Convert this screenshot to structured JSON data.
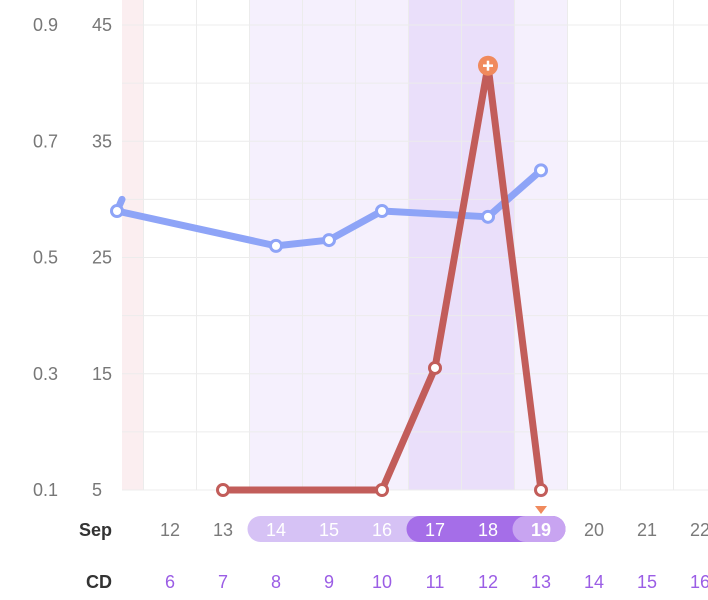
{
  "chart_data": {
    "type": "line",
    "left_axis_ticks": [
      "0.1",
      "0.3",
      "0.5",
      "0.7",
      "0.9"
    ],
    "right_axis_ticks": [
      "5",
      "15",
      "25",
      "35",
      "45"
    ],
    "left_axis_values": [
      0.1,
      0.3,
      0.5,
      0.7,
      0.9
    ],
    "right_axis_values": [
      5,
      15,
      25,
      35,
      45
    ],
    "ylim_right": [
      5,
      45
    ],
    "month_label": "Sep",
    "cd_label": "CD",
    "dates": [
      "12",
      "13",
      "14",
      "15",
      "16",
      "17",
      "18",
      "19",
      "20",
      "21",
      "22"
    ],
    "cycle_days": [
      "6",
      "7",
      "8",
      "9",
      "10",
      "11",
      "12",
      "13",
      "14",
      "15",
      "16"
    ],
    "selected_date": "19",
    "light_band_dates": [
      "14",
      "15",
      "16",
      "19"
    ],
    "dark_band_dates": [
      "17",
      "18"
    ],
    "grid": true,
    "series": [
      {
        "axis": "right",
        "color": "#8ea4f7",
        "x": [
          "11",
          "14",
          "15",
          "16",
          "18",
          "19"
        ],
        "y": [
          29.0,
          26.0,
          26.5,
          29.0,
          28.5,
          32.5
        ]
      },
      {
        "axis": "right",
        "color": "#c25d5a",
        "peak_marker_color": "#f08a5d",
        "x": [
          "13",
          "16",
          "17",
          "18",
          "19"
        ],
        "y": [
          5,
          5,
          15.5,
          41.5,
          5
        ]
      }
    ],
    "colors": {
      "light_band": "#f5f0fd",
      "dark_band": "#eadffa",
      "pink_band": "#fbeef0",
      "pill_light": "#d6c2f5",
      "pill_dark": "#a56ee8",
      "pill_selected": "#c8a4f1",
      "selected_marker": "#f08a5d"
    }
  }
}
